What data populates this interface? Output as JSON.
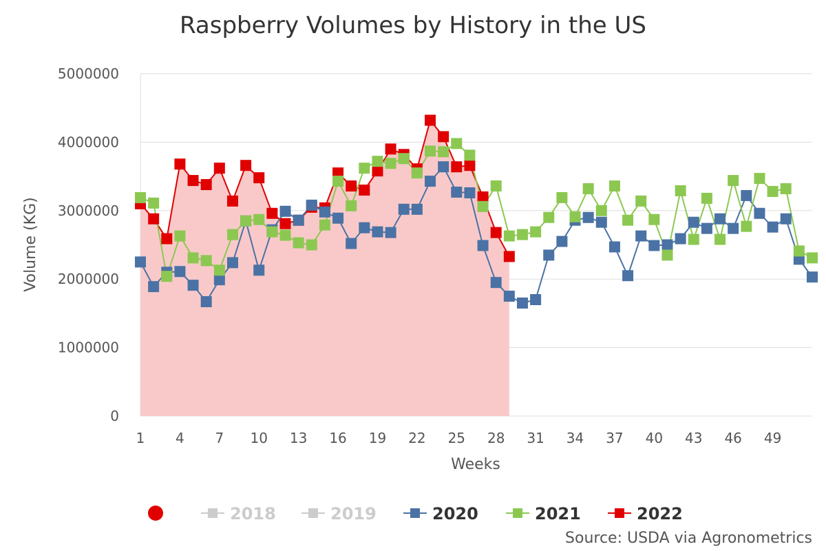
{
  "chart_data": {
    "type": "line",
    "title": "Raspberry Volumes by History in the US",
    "xlabel": "Weeks",
    "ylabel": "Volume (KG)",
    "xlim": [
      1,
      52
    ],
    "ylim": [
      0,
      5000000
    ],
    "x_ticks": [
      1,
      4,
      7,
      10,
      13,
      16,
      19,
      22,
      25,
      28,
      31,
      34,
      37,
      40,
      43,
      46,
      49
    ],
    "y_ticks": [
      0,
      1000000,
      2000000,
      3000000,
      4000000,
      5000000
    ],
    "grid": true,
    "legend_position": "bottom",
    "series": [
      {
        "name": "2018",
        "color": "#cccccc",
        "visible": false,
        "values": []
      },
      {
        "name": "2019",
        "color": "#cccccc",
        "visible": false,
        "values": []
      },
      {
        "name": "2020",
        "color": "#4a72a4",
        "visible": true,
        "area": false,
        "values": [
          2250000,
          1890000,
          2100000,
          2110000,
          1910000,
          1670000,
          1990000,
          2240000,
          2850000,
          2130000,
          2720000,
          2990000,
          2860000,
          3080000,
          2980000,
          2890000,
          2520000,
          2750000,
          2690000,
          2680000,
          3020000,
          3020000,
          3430000,
          3640000,
          3270000,
          3260000,
          2490000,
          1950000,
          1750000,
          1650000,
          1700000,
          2350000,
          2550000,
          2860000,
          2900000,
          2830000,
          2470000,
          2050000,
          2630000,
          2490000,
          2500000,
          2590000,
          2830000,
          2740000,
          2880000,
          2740000,
          3220000,
          2960000,
          2760000,
          2880000,
          2290000,
          2030000
        ]
      },
      {
        "name": "2021",
        "color": "#8cc851",
        "visible": true,
        "area": false,
        "values": [
          3190000,
          3110000,
          2040000,
          2630000,
          2310000,
          2270000,
          2130000,
          2650000,
          2850000,
          2870000,
          2690000,
          2640000,
          2530000,
          2500000,
          2790000,
          3430000,
          3070000,
          3620000,
          3720000,
          3690000,
          3760000,
          3550000,
          3870000,
          3860000,
          3980000,
          3810000,
          3060000,
          3360000,
          2630000,
          2650000,
          2690000,
          2900000,
          3190000,
          2910000,
          3320000,
          3000000,
          3360000,
          2860000,
          3140000,
          2870000,
          2350000,
          3290000,
          2580000,
          3180000,
          2580000,
          3440000,
          2770000,
          3470000,
          3280000,
          3320000,
          2410000,
          2310000
        ]
      },
      {
        "name": "2022",
        "color": "#e00000",
        "visible": true,
        "area": true,
        "area_color": "#f9c9c9",
        "values": [
          3100000,
          2880000,
          2590000,
          3680000,
          3440000,
          3380000,
          3620000,
          3140000,
          3660000,
          3480000,
          2960000,
          2810000,
          2860000,
          3050000,
          3040000,
          3550000,
          3360000,
          3300000,
          3580000,
          3900000,
          3820000,
          3610000,
          4320000,
          4080000,
          3640000,
          3660000,
          3200000,
          2680000,
          2330000
        ]
      }
    ]
  },
  "legend": {
    "items": [
      {
        "label": "2018",
        "color": "#cccccc",
        "text_color": "#cccccc"
      },
      {
        "label": "2019",
        "color": "#cccccc",
        "text_color": "#cccccc"
      },
      {
        "label": "2020",
        "color": "#4a72a4",
        "text_color": "#333333"
      },
      {
        "label": "2021",
        "color": "#8cc851",
        "text_color": "#333333"
      },
      {
        "label": "2022",
        "color": "#e00000",
        "text_color": "#333333"
      }
    ],
    "toggle_color": "#e00000"
  },
  "source_text": "Source: USDA via Agronometrics"
}
